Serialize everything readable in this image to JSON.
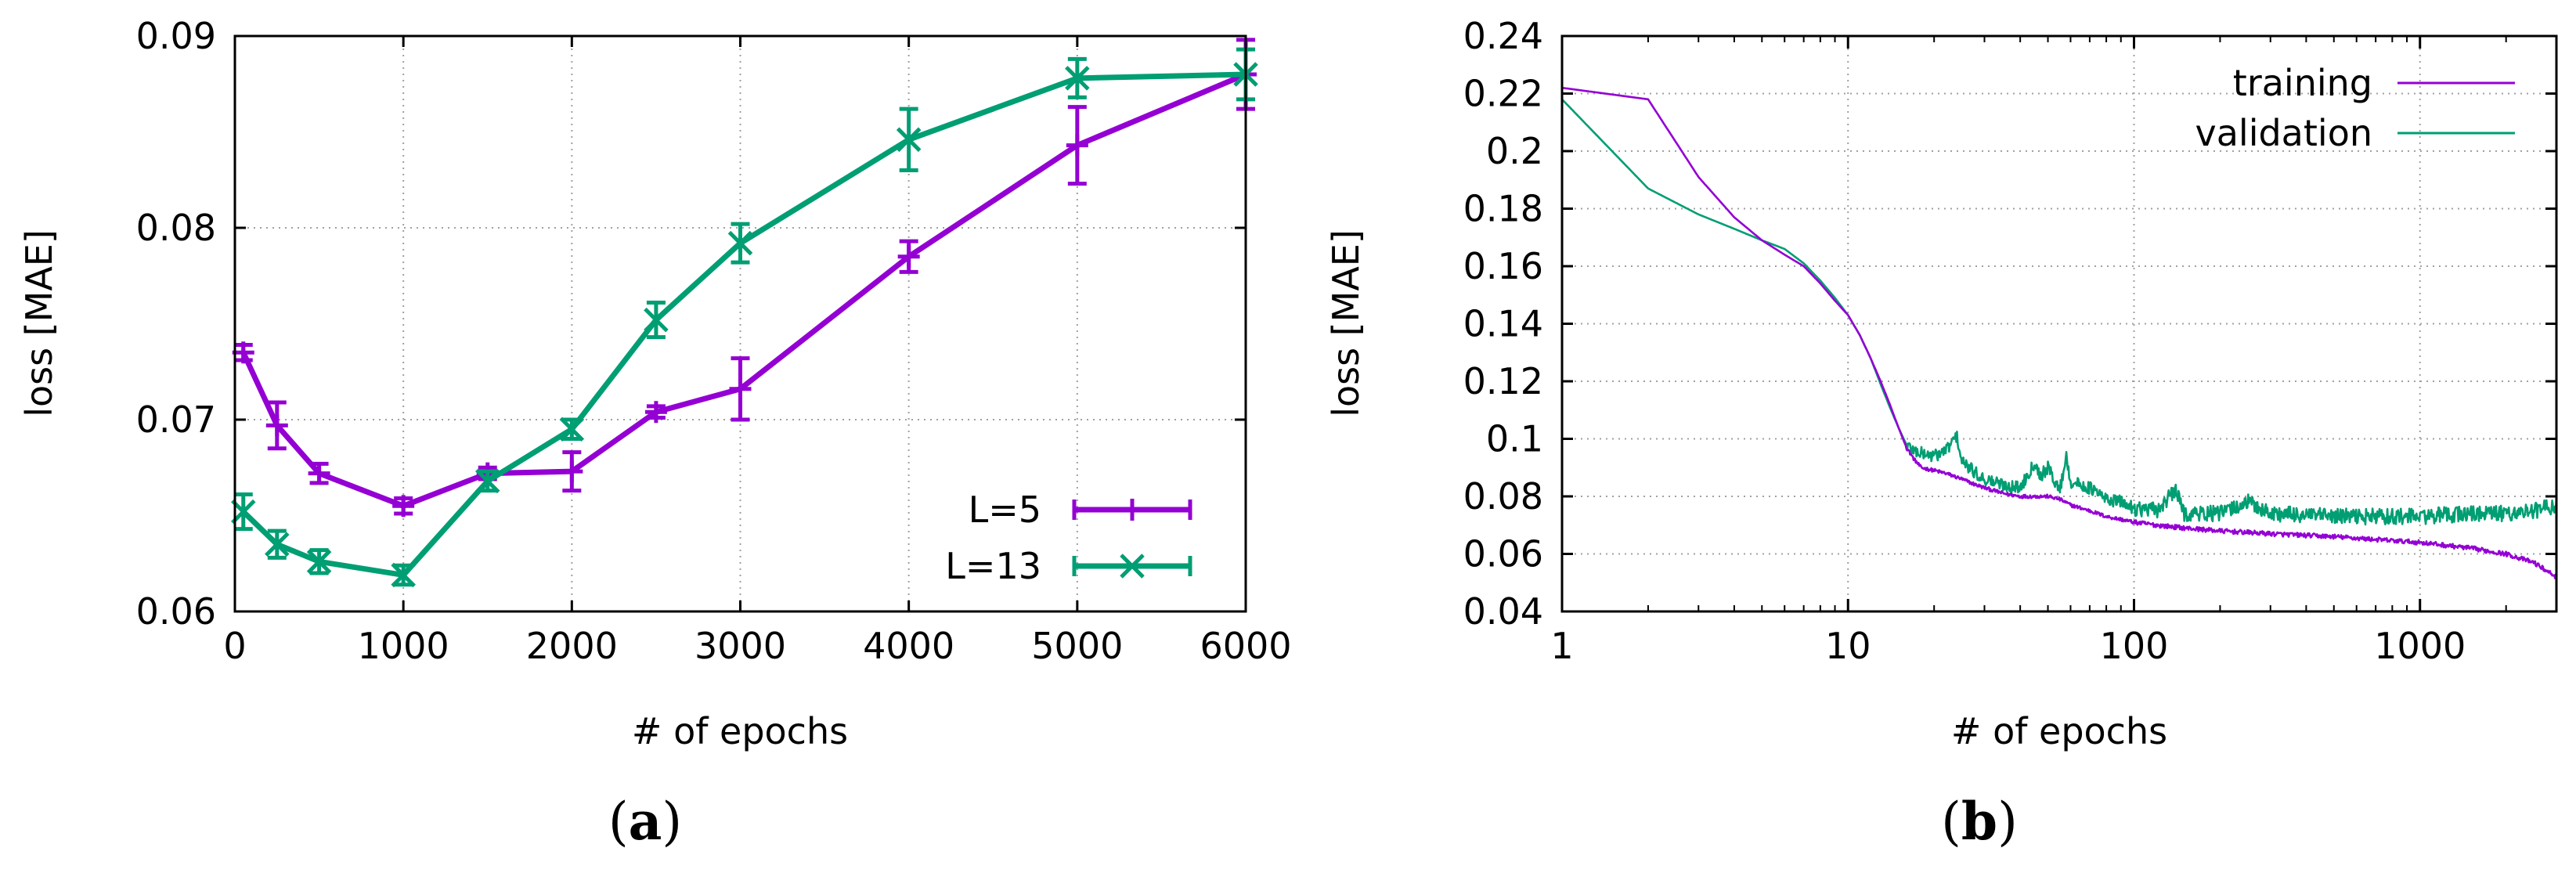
{
  "colors": {
    "purple": "#9400d3",
    "green": "#009e73",
    "grid": "#a0a0a0",
    "axis": "#000000"
  },
  "panels": [
    {
      "open": "(",
      "letter": "a",
      "close": ")"
    },
    {
      "open": "(",
      "letter": "b",
      "close": ")"
    }
  ],
  "chart_data": [
    {
      "id": "a",
      "type": "line",
      "xlabel": "# of epochs",
      "ylabel": "loss [MAE]",
      "xlim": [
        0,
        6000
      ],
      "ylim": [
        0.06,
        0.09
      ],
      "xticks": [
        0,
        1000,
        2000,
        3000,
        4000,
        5000,
        6000
      ],
      "xtick_labels": [
        "0",
        "1000",
        "2000",
        "3000",
        "4000",
        "5000",
        "6000"
      ],
      "yticks": [
        0.06,
        0.07,
        0.08,
        0.09
      ],
      "ytick_labels": [
        "0.06",
        "0.07",
        "0.08",
        "0.09"
      ],
      "grid": true,
      "legend_position": "bottom-right",
      "series": [
        {
          "name": "L=5",
          "color": "#9400d3",
          "marker": "plus",
          "x": [
            50,
            250,
            500,
            1000,
            1500,
            2000,
            2500,
            3000,
            4000,
            5000,
            6000
          ],
          "y": [
            0.0735,
            0.0697,
            0.0672,
            0.0655,
            0.0672,
            0.0673,
            0.0704,
            0.0716,
            0.0785,
            0.0843,
            0.088
          ],
          "err": [
            0.0004,
            0.0012,
            0.0005,
            0.0004,
            0.0003,
            0.001,
            0.0003,
            0.0016,
            0.0008,
            0.002,
            0.0018
          ]
        },
        {
          "name": "L=13",
          "color": "#009e73",
          "marker": "cross",
          "x": [
            50,
            250,
            500,
            1000,
            1500,
            2000,
            2500,
            3000,
            4000,
            5000,
            6000
          ],
          "y": [
            0.0652,
            0.0635,
            0.0626,
            0.0619,
            0.0668,
            0.0695,
            0.0752,
            0.0792,
            0.0846,
            0.0878,
            0.088
          ],
          "err": [
            0.0009,
            0.0007,
            0.0006,
            0.0005,
            0.0005,
            0.0005,
            0.0009,
            0.001,
            0.0016,
            0.001,
            0.0013
          ]
        }
      ]
    },
    {
      "id": "b",
      "type": "line",
      "xscale": "log",
      "xlabel": "# of epochs",
      "ylabel": "loss [MAE]",
      "xlim": [
        1,
        3000
      ],
      "ylim": [
        0.04,
        0.24
      ],
      "xticks": [
        1,
        10,
        100,
        1000
      ],
      "xtick_labels": [
        "1",
        "10",
        "100",
        "1000"
      ],
      "yticks": [
        0.04,
        0.06,
        0.08,
        0.1,
        0.12,
        0.14,
        0.16,
        0.18,
        0.2,
        0.22,
        0.24
      ],
      "ytick_labels": [
        "0.04",
        "0.06",
        "0.08",
        "0.1",
        "0.12",
        "0.14",
        "0.16",
        "0.18",
        "0.2",
        "0.22",
        "0.24"
      ],
      "grid": true,
      "legend_position": "top-right",
      "series": [
        {
          "name": "training",
          "color": "#9400d3",
          "x": [
            1,
            2,
            3,
            4,
            5,
            6,
            7,
            8,
            9,
            10,
            11,
            12,
            13,
            14,
            15,
            16,
            17,
            18,
            20,
            22,
            25,
            28,
            30,
            35,
            40,
            45,
            50,
            55,
            60,
            70,
            80,
            90,
            100,
            120,
            150,
            200,
            300,
            500,
            700,
            1000,
            1500,
            2000,
            2500,
            3000
          ],
          "y": [
            0.222,
            0.218,
            0.191,
            0.177,
            0.169,
            0.164,
            0.16,
            0.154,
            0.148,
            0.143,
            0.136,
            0.128,
            0.12,
            0.112,
            0.104,
            0.097,
            0.093,
            0.09,
            0.089,
            0.088,
            0.086,
            0.084,
            0.083,
            0.081,
            0.08,
            0.08,
            0.08,
            0.079,
            0.077,
            0.075,
            0.073,
            0.072,
            0.071,
            0.07,
            0.069,
            0.068,
            0.067,
            0.066,
            0.065,
            0.064,
            0.062,
            0.06,
            0.057,
            0.052
          ],
          "noise_amplitude": 0.0008
        },
        {
          "name": "validation",
          "color": "#009e73",
          "x": [
            1,
            2,
            3,
            4,
            5,
            6,
            7,
            8,
            9,
            10,
            11,
            12,
            13,
            14,
            15,
            16,
            17,
            18,
            20,
            22,
            24,
            25,
            28,
            30,
            35,
            40,
            45,
            47,
            50,
            55,
            58,
            60,
            70,
            80,
            90,
            100,
            120,
            140,
            150,
            200,
            250,
            300,
            500,
            700,
            1000,
            1500,
            2000,
            2500,
            3000
          ],
          "y": [
            0.218,
            0.187,
            0.178,
            0.173,
            0.169,
            0.166,
            0.161,
            0.155,
            0.149,
            0.143,
            0.136,
            0.128,
            0.119,
            0.111,
            0.104,
            0.098,
            0.096,
            0.095,
            0.094,
            0.096,
            0.101,
            0.092,
            0.088,
            0.086,
            0.084,
            0.083,
            0.092,
            0.087,
            0.09,
            0.082,
            0.094,
            0.085,
            0.083,
            0.079,
            0.078,
            0.076,
            0.075,
            0.082,
            0.074,
            0.074,
            0.078,
            0.074,
            0.073,
            0.073,
            0.073,
            0.074,
            0.074,
            0.075,
            0.077
          ],
          "noise_amplitude": 0.0028
        }
      ]
    }
  ]
}
